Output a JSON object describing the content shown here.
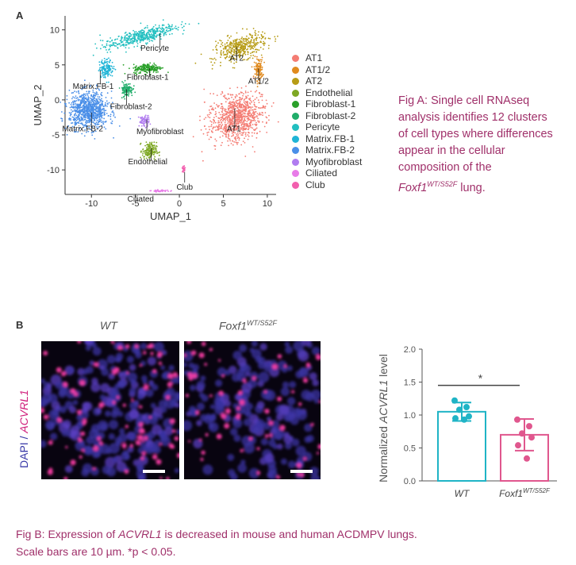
{
  "panel_a": {
    "letter": "A",
    "caption_lines": [
      "Fig A: Single cell RNAseq",
      "analysis identifies 12 clusters",
      "of cell types where differences",
      "appear in the cellular",
      "composition of the"
    ],
    "caption_gene": "Foxf1",
    "caption_gene_sup": "WT/S52F",
    "caption_tail": " lung."
  },
  "panel_b": {
    "letter": "B",
    "wt_label": "WT",
    "mut_label": "Foxf1",
    "mut_sup": "WT/S52F",
    "dapi_label": "DAPI",
    "stain_sep": " / ",
    "acvrl1_label": "ACVRL1",
    "caption_line1_pre": "Fig B: Expression of ",
    "caption_line1_gene": "ACVRL1",
    "caption_line1_post": " is decreased in mouse and human ACDMPV lungs.",
    "caption_line2": "Scale bars are 10 µm. *p < 0.05."
  },
  "chart_data": [
    {
      "type": "scatter",
      "subtype": "umap",
      "xlabel": "UMAP_1",
      "ylabel": "UMAP_2",
      "xlim": [
        -13,
        11
      ],
      "ylim": [
        -13.5,
        12
      ],
      "xticks": [
        -10,
        -5,
        0,
        5,
        10
      ],
      "yticks": [
        -10,
        -5,
        0,
        5,
        10
      ],
      "grid": false,
      "legend_position": "right",
      "clusters": [
        {
          "name": "AT1",
          "color": "#f47c73",
          "cluster_label": "AT1"
        },
        {
          "name": "AT1/2",
          "color": "#e08a1e",
          "cluster_label": "AT1/2"
        },
        {
          "name": "AT2",
          "color": "#b79c16",
          "cluster_label": "AT2"
        },
        {
          "name": "Endothelial",
          "color": "#7ea824",
          "cluster_label": "Endothelial"
        },
        {
          "name": "Fibroblast-1",
          "color": "#2aa02a",
          "cluster_label": "Fibroblast-1"
        },
        {
          "name": "Fibroblast-2",
          "color": "#20ad6a",
          "cluster_label": "Fibroblast-2"
        },
        {
          "name": "Pericyte",
          "color": "#22bfc0",
          "cluster_label": "Pericyte"
        },
        {
          "name": "Matrix.FB-1",
          "color": "#1fb4d6",
          "cluster_label": "Matrix.FB-1"
        },
        {
          "name": "Matrix.FB-2",
          "color": "#4a8fe8",
          "cluster_label": "Matrix.FB-2"
        },
        {
          "name": "Myofibroblast",
          "color": "#b07cf0",
          "cluster_label": "Myofibroblast"
        },
        {
          "name": "Ciliated",
          "color": "#e87be8",
          "cluster_label": "Ciliated"
        },
        {
          "name": "Club",
          "color": "#f25fae",
          "cluster_label": "Club"
        }
      ]
    },
    {
      "type": "bar",
      "categories": [
        "WT",
        "Foxf1"
      ],
      "category_sup": [
        "",
        "WT/S52F"
      ],
      "values": [
        1.05,
        0.7
      ],
      "errors": [
        0.14,
        0.24
      ],
      "points": [
        [
          1.22,
          1.12,
          1.08,
          0.98,
          0.95,
          0.93
        ],
        [
          0.93,
          0.83,
          0.72,
          0.66,
          0.54,
          0.34
        ]
      ],
      "colors": [
        "#1fb4c6",
        "#e0578e"
      ],
      "ylabel_pre": "Normalized ",
      "ylabel_gene": "ACVRL1",
      "ylabel_post": " level",
      "ylim": [
        0,
        2.0
      ],
      "yticks": [
        "0.0",
        "0.5",
        "1.0",
        "1.5",
        "2.0"
      ],
      "annotation": "*",
      "grid": false
    }
  ]
}
